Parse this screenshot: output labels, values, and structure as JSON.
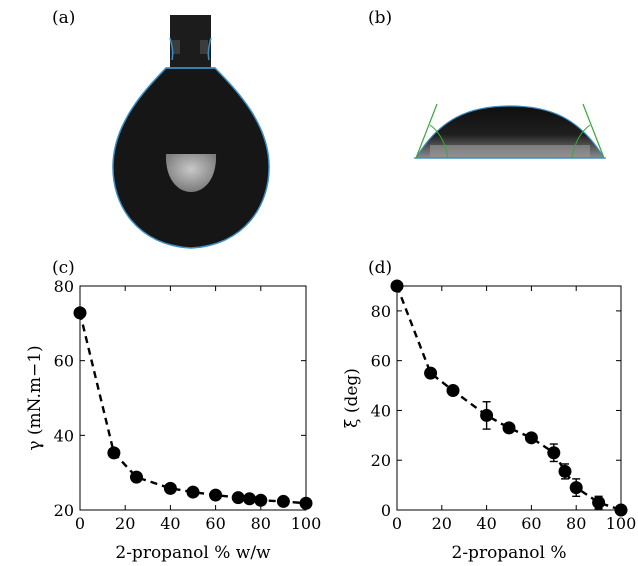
{
  "panels": {
    "a": "(a)",
    "b": "(b)",
    "c": "(c)",
    "d": "(d)"
  },
  "chart_data": [
    {
      "type": "scatter",
      "panel": "(c)",
      "xlabel": "2-propanol % w/w",
      "ylabel": "γ (mN.m−1)",
      "xlim": [
        0,
        100
      ],
      "ylim": [
        20,
        80
      ],
      "xticks": [
        0,
        20,
        40,
        60,
        80,
        100
      ],
      "yticks": [
        20,
        40,
        60,
        80
      ],
      "line_style": "dashed",
      "x": [
        0,
        15,
        25,
        40,
        50,
        60,
        70,
        75,
        80,
        90,
        100
      ],
      "y": [
        72.8,
        35.3,
        28.8,
        25.8,
        24.8,
        24.0,
        23.3,
        23.0,
        22.6,
        22.3,
        21.8
      ],
      "yerr": [
        0,
        0,
        0,
        0,
        0,
        0,
        0,
        0,
        0,
        0,
        0
      ]
    },
    {
      "type": "scatter",
      "panel": "(d)",
      "xlabel": "2-propanol %",
      "ylabel": "ξ (deg)",
      "xlim": [
        0,
        100
      ],
      "ylim": [
        0,
        90
      ],
      "xticks": [
        0,
        20,
        40,
        60,
        80,
        100
      ],
      "yticks": [
        0,
        20,
        40,
        60,
        80
      ],
      "line_style": "dashed",
      "x": [
        0,
        15,
        25,
        40,
        50,
        60,
        70,
        75,
        80,
        90,
        100
      ],
      "y": [
        90,
        55,
        48,
        38,
        33,
        29,
        23,
        15.5,
        9,
        3,
        0
      ],
      "yerr": [
        0,
        0,
        0,
        5.5,
        0,
        1.5,
        3.5,
        3,
        3.5,
        2.5,
        0
      ]
    }
  ]
}
